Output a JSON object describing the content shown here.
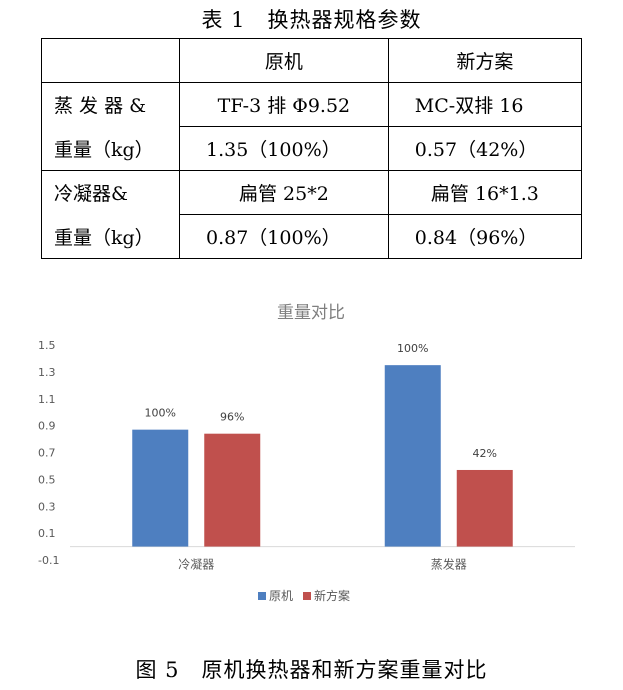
{
  "table": {
    "caption": "表 1　换热器规格参数",
    "headers": [
      "",
      "原机",
      "新方案"
    ],
    "rows": [
      {
        "label_line1": "蒸 发 器 &",
        "label_line2": "重量（kg）",
        "orig_spec": "TF-3 排 Φ9.52",
        "new_spec": "MC-双排 16",
        "orig_weight": "1.35（100%）",
        "new_weight": "0.57（42%）"
      },
      {
        "label_line1": "冷凝器&",
        "label_line2": "重量（kg）",
        "orig_spec": "扁管 25*2",
        "new_spec": "扁管 16*1.3",
        "orig_weight": "0.87（100%）",
        "new_weight": "0.84（96%）"
      }
    ]
  },
  "chart_data": {
    "type": "bar",
    "title": "重量对比",
    "categories": [
      "冷凝器",
      "蒸发器"
    ],
    "series": [
      {
        "name": "原机",
        "color": "#4E7FC0",
        "values": [
          0.87,
          1.35
        ],
        "labels": [
          "100%",
          "100%"
        ]
      },
      {
        "name": "新方案",
        "color": "#C0504D",
        "values": [
          0.84,
          0.57
        ],
        "labels": [
          "96%",
          "42%"
        ]
      }
    ],
    "yticks": [
      "1.5",
      "1.3",
      "1.1",
      "0.9",
      "0.7",
      "0.5",
      "0.3",
      "0.1",
      "-0.1"
    ],
    "ylim": [
      -0.1,
      1.5
    ],
    "grid": false,
    "legend_position": "bottom"
  },
  "figure": {
    "caption": "图 5　原机换热器和新方案重量对比"
  }
}
